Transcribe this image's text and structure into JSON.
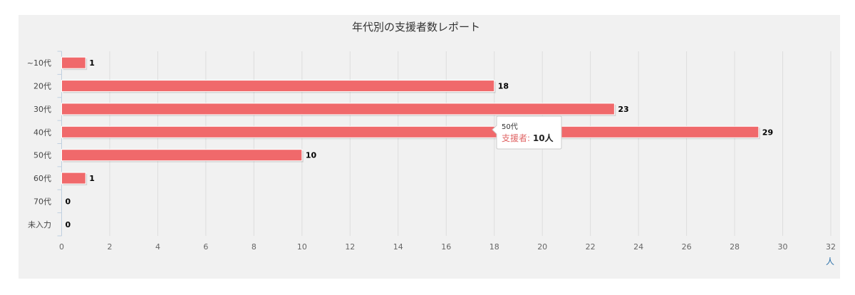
{
  "chart_data": {
    "type": "bar",
    "orientation": "horizontal",
    "title": "年代別の支援者数レポート",
    "categories": [
      "~10代",
      "20代",
      "30代",
      "40代",
      "50代",
      "60代",
      "70代",
      "未入力"
    ],
    "values": [
      1,
      18,
      23,
      29,
      10,
      1,
      0,
      0
    ],
    "series_name": "支援者",
    "xlim": [
      0,
      32
    ],
    "x_ticks": [
      0,
      2,
      4,
      6,
      8,
      10,
      12,
      14,
      16,
      18,
      20,
      22,
      24,
      26,
      28,
      30,
      32
    ],
    "x_unit": "人",
    "grid": "vertical",
    "bar_color": "#f0696b"
  },
  "tooltip": {
    "category": "50代",
    "series_label": "支援者: ",
    "value_text": "10人"
  }
}
